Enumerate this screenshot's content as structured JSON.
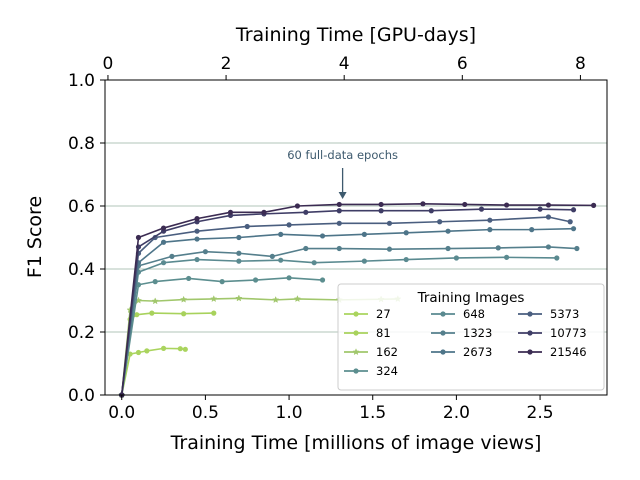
{
  "chart_data": {
    "type": "line",
    "xlabel": "Training Time [millions of image views]",
    "x2label": "Training Time [GPU-days]",
    "ylabel": "F1 Score",
    "xlim": [
      -0.1,
      2.9
    ],
    "ylim": [
      0.0,
      1.0
    ],
    "x2lim": [
      -0.05,
      8.45
    ],
    "x_ticks": [
      "0.0",
      "0.5",
      "1.0",
      "1.5",
      "2.0",
      "2.5"
    ],
    "x_tick_values": [
      0.0,
      0.5,
      1.0,
      1.5,
      2.0,
      2.5
    ],
    "x2_ticks": [
      "0",
      "2",
      "4",
      "6",
      "8"
    ],
    "x2_tick_values": [
      0,
      2,
      4,
      6,
      8
    ],
    "y_ticks": [
      "0.0",
      "0.2",
      "0.4",
      "0.6",
      "0.8",
      "1.0"
    ],
    "y_tick_values": [
      0.0,
      0.2,
      0.4,
      0.6,
      0.8,
      1.0
    ],
    "grid": "horizontal",
    "legend": {
      "title": "Training Images",
      "placement": "lower-right",
      "ncol": 3
    },
    "annotation": {
      "text": "60 full-data epochs",
      "x": 1.32,
      "y": 0.6,
      "color": "#3e5a6e"
    },
    "series": [
      {
        "name": "27",
        "color": "#aad45e",
        "marker": "circle",
        "x": [
          0,
          0.05,
          0.1,
          0.15,
          0.25,
          0.35,
          0.38
        ],
        "y": [
          0,
          0.13,
          0.135,
          0.14,
          0.148,
          0.147,
          0.145
        ]
      },
      {
        "name": "81",
        "color": "#a8d25c",
        "marker": "circle",
        "x": [
          0,
          0.05,
          0.09,
          0.18,
          0.37,
          0.55
        ],
        "y": [
          0,
          0.24,
          0.255,
          0.26,
          0.258,
          0.26
        ]
      },
      {
        "name": "162",
        "color": "#a1c76c",
        "marker": "star",
        "x": [
          0,
          0.05,
          0.1,
          0.2,
          0.37,
          0.55,
          0.7,
          0.92,
          1.05,
          1.3,
          1.55,
          1.65
        ],
        "y": [
          0,
          0.27,
          0.3,
          0.298,
          0.303,
          0.305,
          0.307,
          0.302,
          0.305,
          0.302,
          0.304,
          0.305
        ]
      },
      {
        "name": "324",
        "color": "#5c8e8f",
        "marker": "circle",
        "x": [
          0,
          0.1,
          0.2,
          0.4,
          0.6,
          0.8,
          1.0,
          1.2
        ],
        "y": [
          0,
          0.35,
          0.36,
          0.37,
          0.36,
          0.365,
          0.372,
          0.365
        ]
      },
      {
        "name": "648",
        "color": "#5a8a90",
        "marker": "circle",
        "x": [
          0,
          0.1,
          0.25,
          0.45,
          0.7,
          0.95,
          1.15,
          1.45,
          1.7,
          2.0,
          2.3,
          2.6
        ],
        "y": [
          0,
          0.39,
          0.42,
          0.43,
          0.425,
          0.428,
          0.42,
          0.425,
          0.43,
          0.435,
          0.437,
          0.435
        ]
      },
      {
        "name": "1323",
        "color": "#557f8c",
        "marker": "circle",
        "x": [
          0,
          0.1,
          0.3,
          0.5,
          0.7,
          0.9,
          1.1,
          1.3,
          1.6,
          1.95,
          2.25,
          2.55,
          2.72
        ],
        "y": [
          0,
          0.41,
          0.44,
          0.455,
          0.45,
          0.44,
          0.465,
          0.465,
          0.463,
          0.465,
          0.467,
          0.47,
          0.465
        ]
      },
      {
        "name": "2673",
        "color": "#4e7589",
        "marker": "circle",
        "x": [
          0,
          0.1,
          0.25,
          0.45,
          0.7,
          0.95,
          1.2,
          1.45,
          1.7,
          1.95,
          2.2,
          2.45,
          2.7
        ],
        "y": [
          0,
          0.42,
          0.485,
          0.495,
          0.5,
          0.51,
          0.505,
          0.51,
          0.515,
          0.52,
          0.525,
          0.525,
          0.528
        ]
      },
      {
        "name": "5373",
        "color": "#4a5e7f",
        "marker": "circle",
        "x": [
          0,
          0.1,
          0.2,
          0.45,
          0.75,
          1.0,
          1.3,
          1.6,
          1.9,
          2.2,
          2.55,
          2.68
        ],
        "y": [
          0,
          0.45,
          0.5,
          0.52,
          0.535,
          0.54,
          0.545,
          0.545,
          0.55,
          0.555,
          0.565,
          0.55
        ]
      },
      {
        "name": "10773",
        "color": "#3f3d66",
        "marker": "circle",
        "x": [
          0,
          0.1,
          0.25,
          0.45,
          0.65,
          0.85,
          1.1,
          1.3,
          1.55,
          1.85,
          2.15,
          2.5,
          2.7
        ],
        "y": [
          0,
          0.47,
          0.52,
          0.55,
          0.57,
          0.575,
          0.58,
          0.585,
          0.585,
          0.585,
          0.59,
          0.59,
          0.588
        ]
      },
      {
        "name": "21546",
        "color": "#3b2b52",
        "marker": "circle",
        "x": [
          0,
          0.1,
          0.25,
          0.45,
          0.65,
          0.85,
          1.05,
          1.3,
          1.55,
          1.8,
          2.05,
          2.3,
          2.55,
          2.82
        ],
        "y": [
          0,
          0.5,
          0.53,
          0.56,
          0.58,
          0.58,
          0.6,
          0.605,
          0.605,
          0.607,
          0.605,
          0.603,
          0.603,
          0.602
        ]
      }
    ]
  }
}
